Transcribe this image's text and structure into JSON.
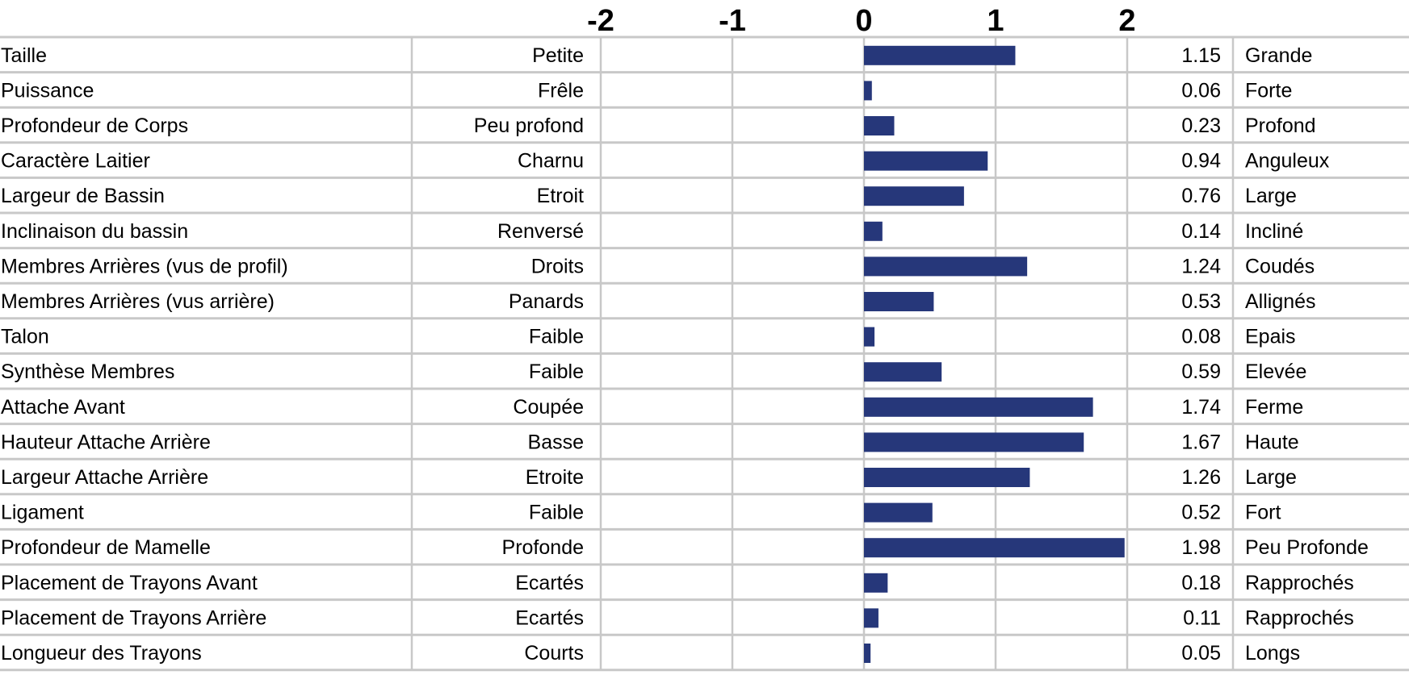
{
  "chart_data": {
    "type": "bar",
    "orientation": "horizontal",
    "title": "",
    "xlabel": "",
    "ylabel": "",
    "xlim": [
      -2,
      2
    ],
    "x_ticks": [
      "-2",
      "-1",
      "0",
      "1",
      "2"
    ],
    "grid": true,
    "bar_color": "#26377a",
    "grid_color": "#c8c8c8",
    "categories": [
      "Taille",
      "Puissance",
      "Profondeur de Corps",
      "Caractère Laitier",
      "Largeur de Bassin",
      "Inclinaison du bassin",
      "Membres Arrières (vus de profil)",
      "Membres Arrières (vus arrière)",
      "Talon",
      "Synthèse Membres",
      "Attache Avant",
      "Hauteur Attache Arrière",
      "Largeur Attache Arrière",
      "Ligament",
      "Profondeur de Mamelle",
      "Placement de Trayons Avant",
      "Placement de Trayons Arrière",
      "Longueur des Trayons"
    ],
    "low_labels": [
      "Petite",
      "Frêle",
      "Peu profond",
      "Charnu",
      "Etroit",
      "Renversé",
      "Droits",
      "Panards",
      "Faible",
      "Faible",
      "Coupée",
      "Basse",
      "Etroite",
      "Faible",
      "Profonde",
      "Ecartés",
      "Ecartés",
      "Courts"
    ],
    "values": [
      1.15,
      0.06,
      0.23,
      0.94,
      0.76,
      0.14,
      1.24,
      0.53,
      0.08,
      0.59,
      1.74,
      1.67,
      1.26,
      0.52,
      1.98,
      0.18,
      0.11,
      0.05
    ],
    "value_labels": [
      "1.15",
      "0.06",
      "0.23",
      "0.94",
      "0.76",
      "0.14",
      "1.24",
      "0.53",
      "0.08",
      "0.59",
      "1.74",
      "1.67",
      "1.26",
      "0.52",
      "1.98",
      "0.18",
      "0.11",
      "0.05"
    ],
    "high_labels": [
      "Grande",
      "Forte",
      "Profond",
      "Anguleux",
      "Large",
      "Incliné",
      "Coudés",
      "Allignés",
      "Epais",
      "Elevée",
      "Ferme",
      "Haute",
      "Large",
      "Fort",
      "Peu Profonde",
      "Rapprochés",
      "Rapprochés",
      "Longs"
    ]
  }
}
